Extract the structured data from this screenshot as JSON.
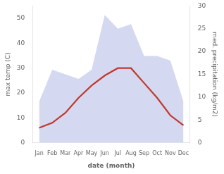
{
  "chart_data": {
    "type": "line",
    "categories": [
      "Jan",
      "Feb",
      "Mar",
      "Apr",
      "May",
      "Jun",
      "Jul",
      "Aug",
      "Sep",
      "Oct",
      "Nov",
      "Dec"
    ],
    "series": [
      {
        "type": "area",
        "color": "#b8c0e8",
        "axis": "y2",
        "values": [
          9,
          16,
          15,
          14,
          16,
          28,
          25,
          26,
          19,
          19,
          18,
          9
        ]
      },
      {
        "type": "line",
        "color": "#c0392b",
        "values": [
          6,
          8,
          12,
          18,
          23,
          27,
          30,
          30,
          24,
          18,
          11,
          7
        ]
      }
    ],
    "xlabel": "date (month)",
    "ylabel": "max temp (C)",
    "y2label": "med. precipitation (kg/m2)",
    "ylim": [
      0,
      55
    ],
    "yticks": [
      0,
      10,
      20,
      30,
      40,
      50
    ],
    "y2lim": [
      0,
      30
    ],
    "y2ticks": [
      0,
      5,
      10,
      15,
      20,
      25,
      30
    ],
    "grid": false
  }
}
